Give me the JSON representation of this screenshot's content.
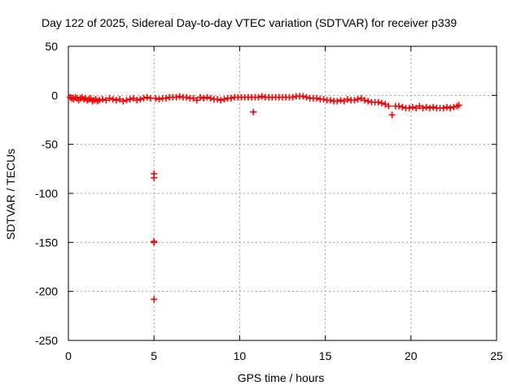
{
  "chart_data": {
    "type": "scatter",
    "title": "Day 122 of 2025, Sidereal Day-to-day VTEC variation (SDTVAR) for receiver p339",
    "xlabel": "GPS time / hours",
    "ylabel": "SDTVAR / TECUs",
    "xlim": [
      0,
      25
    ],
    "ylim": [
      -250,
      50
    ],
    "xticks": [
      0,
      5,
      10,
      15,
      20,
      25
    ],
    "yticks": [
      50,
      0,
      -50,
      -100,
      -150,
      -200,
      -250
    ],
    "xtick_labels": [
      "0",
      "5",
      "10",
      "15",
      "20",
      "25"
    ],
    "ytick_labels": [
      "50",
      "0",
      "-50",
      "-100",
      "-150",
      "-200",
      "-250"
    ],
    "grid": true,
    "legend": "none",
    "marker": "plus",
    "series_color": "#ff0000",
    "series": [
      {
        "name": "p339",
        "points": [
          [
            0.1,
            -2
          ],
          [
            0.2,
            -3
          ],
          [
            0.3,
            -4
          ],
          [
            0.4,
            -2
          ],
          [
            0.5,
            -3
          ],
          [
            0.6,
            -5
          ],
          [
            0.7,
            -3
          ],
          [
            0.8,
            -2
          ],
          [
            0.9,
            -4
          ],
          [
            1.0,
            -3
          ],
          [
            1.1,
            -5
          ],
          [
            1.2,
            -4
          ],
          [
            1.3,
            -3
          ],
          [
            1.4,
            -6
          ],
          [
            1.5,
            -5
          ],
          [
            1.6,
            -4
          ],
          [
            1.7,
            -6
          ],
          [
            1.8,
            -5
          ],
          [
            2.0,
            -4
          ],
          [
            2.2,
            -5
          ],
          [
            2.4,
            -3
          ],
          [
            2.6,
            -4
          ],
          [
            2.8,
            -5
          ],
          [
            3.0,
            -4
          ],
          [
            3.2,
            -6
          ],
          [
            3.4,
            -5
          ],
          [
            3.6,
            -4
          ],
          [
            3.8,
            -3
          ],
          [
            4.0,
            -5
          ],
          [
            4.2,
            -4
          ],
          [
            4.4,
            -3
          ],
          [
            4.6,
            -2
          ],
          [
            4.8,
            -3
          ],
          [
            5.0,
            -80
          ],
          [
            5.0,
            -84
          ],
          [
            5.0,
            -149
          ],
          [
            5.0,
            -150
          ],
          [
            5.0,
            -208
          ],
          [
            5.1,
            -3
          ],
          [
            5.3,
            -4
          ],
          [
            5.5,
            -3
          ],
          [
            5.7,
            -3
          ],
          [
            5.9,
            -2
          ],
          [
            6.1,
            -2
          ],
          [
            6.3,
            -2
          ],
          [
            6.5,
            -1
          ],
          [
            6.7,
            -2
          ],
          [
            6.9,
            -2
          ],
          [
            7.1,
            -3
          ],
          [
            7.3,
            -3
          ],
          [
            7.5,
            -5
          ],
          [
            7.7,
            -2
          ],
          [
            7.9,
            -3
          ],
          [
            8.1,
            -2
          ],
          [
            8.3,
            -3
          ],
          [
            8.5,
            -4
          ],
          [
            8.7,
            -4
          ],
          [
            8.9,
            -5
          ],
          [
            9.1,
            -4
          ],
          [
            9.3,
            -3
          ],
          [
            9.5,
            -3
          ],
          [
            9.7,
            -2
          ],
          [
            9.9,
            -2
          ],
          [
            10.1,
            -2
          ],
          [
            10.3,
            -2
          ],
          [
            10.5,
            -2
          ],
          [
            10.7,
            -2
          ],
          [
            10.8,
            -17
          ],
          [
            10.9,
            -2
          ],
          [
            11.1,
            -2
          ],
          [
            11.3,
            -1
          ],
          [
            11.5,
            -2
          ],
          [
            11.7,
            -2
          ],
          [
            11.9,
            -2
          ],
          [
            12.1,
            -2
          ],
          [
            12.3,
            -2
          ],
          [
            12.5,
            -2
          ],
          [
            12.7,
            -2
          ],
          [
            12.9,
            -2
          ],
          [
            13.1,
            -2
          ],
          [
            13.3,
            -1
          ],
          [
            13.5,
            -1
          ],
          [
            13.7,
            -1
          ],
          [
            13.9,
            -2
          ],
          [
            14.1,
            -3
          ],
          [
            14.3,
            -3
          ],
          [
            14.5,
            -3
          ],
          [
            14.7,
            -4
          ],
          [
            14.9,
            -4
          ],
          [
            15.1,
            -5
          ],
          [
            15.3,
            -5
          ],
          [
            15.5,
            -6
          ],
          [
            15.7,
            -6
          ],
          [
            15.9,
            -5
          ],
          [
            16.1,
            -6
          ],
          [
            16.3,
            -4
          ],
          [
            16.5,
            -5
          ],
          [
            16.7,
            -5
          ],
          [
            16.9,
            -4
          ],
          [
            17.1,
            -3
          ],
          [
            17.3,
            -5
          ],
          [
            17.5,
            -6
          ],
          [
            17.7,
            -7
          ],
          [
            17.9,
            -7
          ],
          [
            18.1,
            -7
          ],
          [
            18.3,
            -8
          ],
          [
            18.5,
            -9
          ],
          [
            18.7,
            -11
          ],
          [
            18.9,
            -20
          ],
          [
            19.1,
            -11
          ],
          [
            19.3,
            -11
          ],
          [
            19.5,
            -12
          ],
          [
            19.7,
            -13
          ],
          [
            19.9,
            -13
          ],
          [
            20.1,
            -12
          ],
          [
            20.3,
            -13
          ],
          [
            20.5,
            -11
          ],
          [
            20.7,
            -13
          ],
          [
            20.9,
            -12
          ],
          [
            21.1,
            -13
          ],
          [
            21.3,
            -12
          ],
          [
            21.5,
            -13
          ],
          [
            21.7,
            -13
          ],
          [
            21.9,
            -13
          ],
          [
            22.1,
            -12
          ],
          [
            22.3,
            -13
          ],
          [
            22.5,
            -12
          ],
          [
            22.7,
            -11
          ],
          [
            22.8,
            -10
          ]
        ]
      }
    ]
  }
}
